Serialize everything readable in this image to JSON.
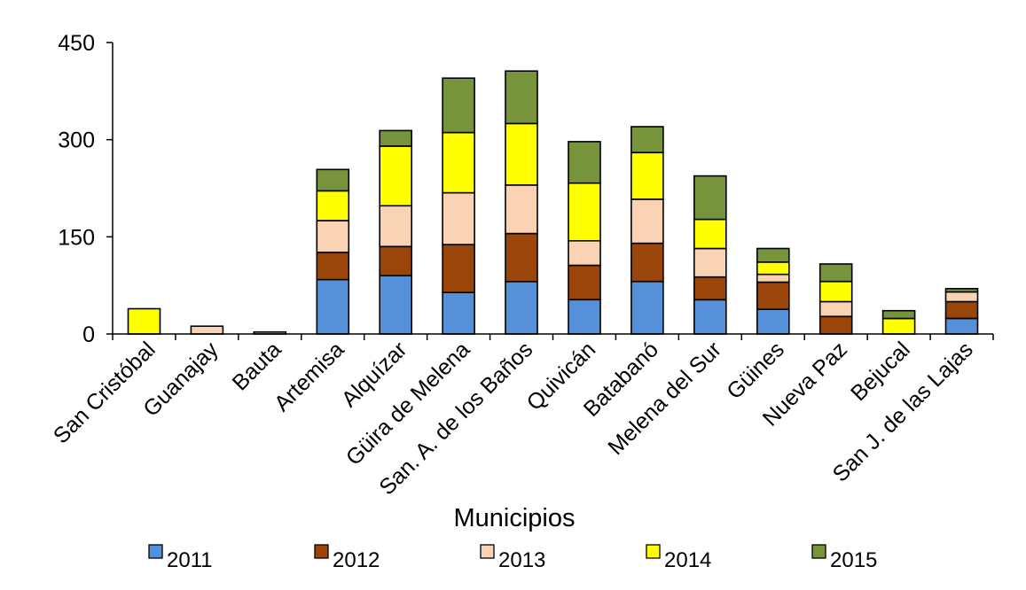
{
  "chart_data": {
    "type": "bar",
    "stacked": true,
    "title": "",
    "xlabel": "Municipios",
    "ylabel": "",
    "ylim": [
      0,
      450
    ],
    "yticks": [
      "0",
      "150",
      "300",
      "450"
    ],
    "grid": false,
    "legend_position": "bottom",
    "categories": [
      "San Cristóbal",
      "Guanajay",
      "Bauta",
      "Artemisa",
      "Alquízar",
      "Güira de Melena",
      "San. A. de los Baños",
      "Quivicán",
      "Batabanó",
      "Melena del Sur",
      "Güines",
      "Nueva Paz",
      "Bejucal",
      "San J. de las Lajas"
    ],
    "series": [
      {
        "name": "2011",
        "color": "#5590d8",
        "values": [
          0,
          0,
          0,
          84,
          90,
          64,
          81,
          53,
          81,
          53,
          38,
          0,
          0,
          24
        ]
      },
      {
        "name": "2012",
        "color": "#9a4509",
        "values": [
          0,
          0,
          0,
          42,
          45,
          74,
          74,
          53,
          59,
          35,
          42,
          27,
          0,
          26
        ]
      },
      {
        "name": "2013",
        "color": "#fad2b4",
        "values": [
          0,
          12,
          3,
          49,
          63,
          80,
          75,
          38,
          68,
          44,
          12,
          23,
          0,
          15
        ]
      },
      {
        "name": "2014",
        "color": "#ffff00",
        "values": [
          39,
          0,
          0,
          46,
          92,
          93,
          95,
          89,
          72,
          45,
          19,
          31,
          24,
          0
        ]
      },
      {
        "name": "2015",
        "color": "#77933c",
        "values": [
          0,
          0,
          0,
          33,
          24,
          84,
          81,
          64,
          40,
          67,
          21,
          27,
          12,
          5
        ]
      }
    ]
  }
}
